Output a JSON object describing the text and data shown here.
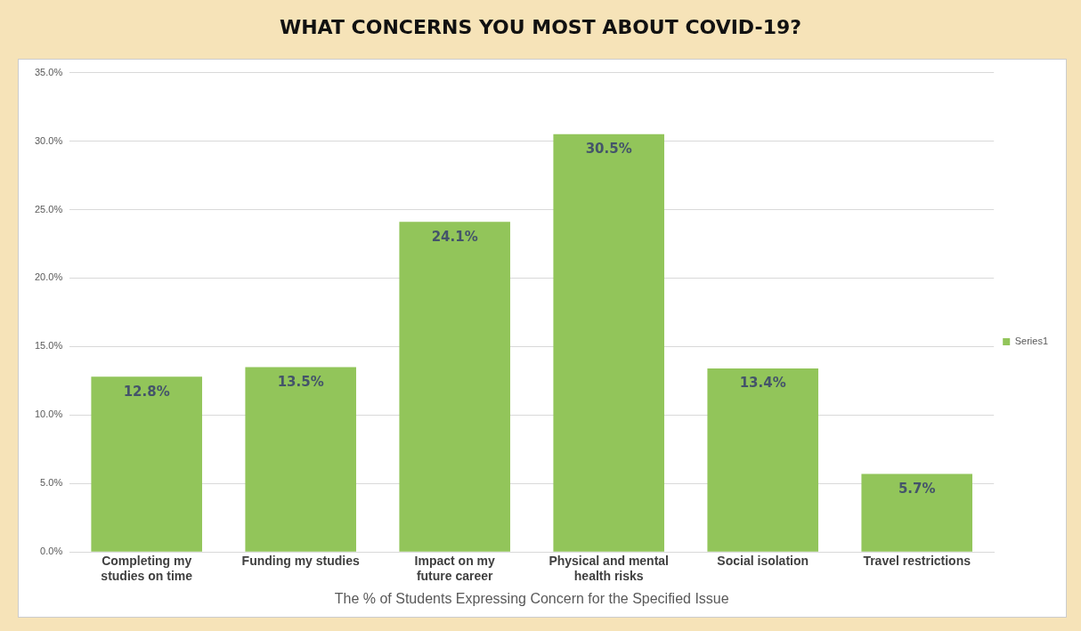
{
  "chart_data": {
    "type": "bar",
    "title": "WHAT CONCERNS YOU MOST ABOUT COVID-19?",
    "xlabel": "The % of Students Expressing Concern for the Specified Issue",
    "categories": [
      "Completing my studies on time",
      "Funding my studies",
      "Impact on my future career",
      "Physical and mental health risks",
      "Social isolation",
      "Travel restrictions"
    ],
    "series": [
      {
        "name": "Series1",
        "color": "#92c55a",
        "values": [
          12.8,
          13.5,
          24.1,
          30.5,
          13.4,
          5.7
        ],
        "value_labels": [
          "12.8%",
          "13.5%",
          "24.1%",
          "30.5%",
          "13.4%",
          "5.7%"
        ]
      }
    ],
    "ylim": [
      0,
      35
    ],
    "yticks": [
      {
        "value": 0,
        "label": "0.0%"
      },
      {
        "value": 5,
        "label": "5.0%"
      },
      {
        "value": 10,
        "label": "10.0%"
      },
      {
        "value": 15,
        "label": "15.0%"
      },
      {
        "value": 20,
        "label": "20.0%"
      },
      {
        "value": 25,
        "label": "25.0%"
      },
      {
        "value": 30,
        "label": "30.0%"
      },
      {
        "value": 35,
        "label": "35.0%"
      }
    ],
    "grid": "y",
    "legend": "right"
  }
}
